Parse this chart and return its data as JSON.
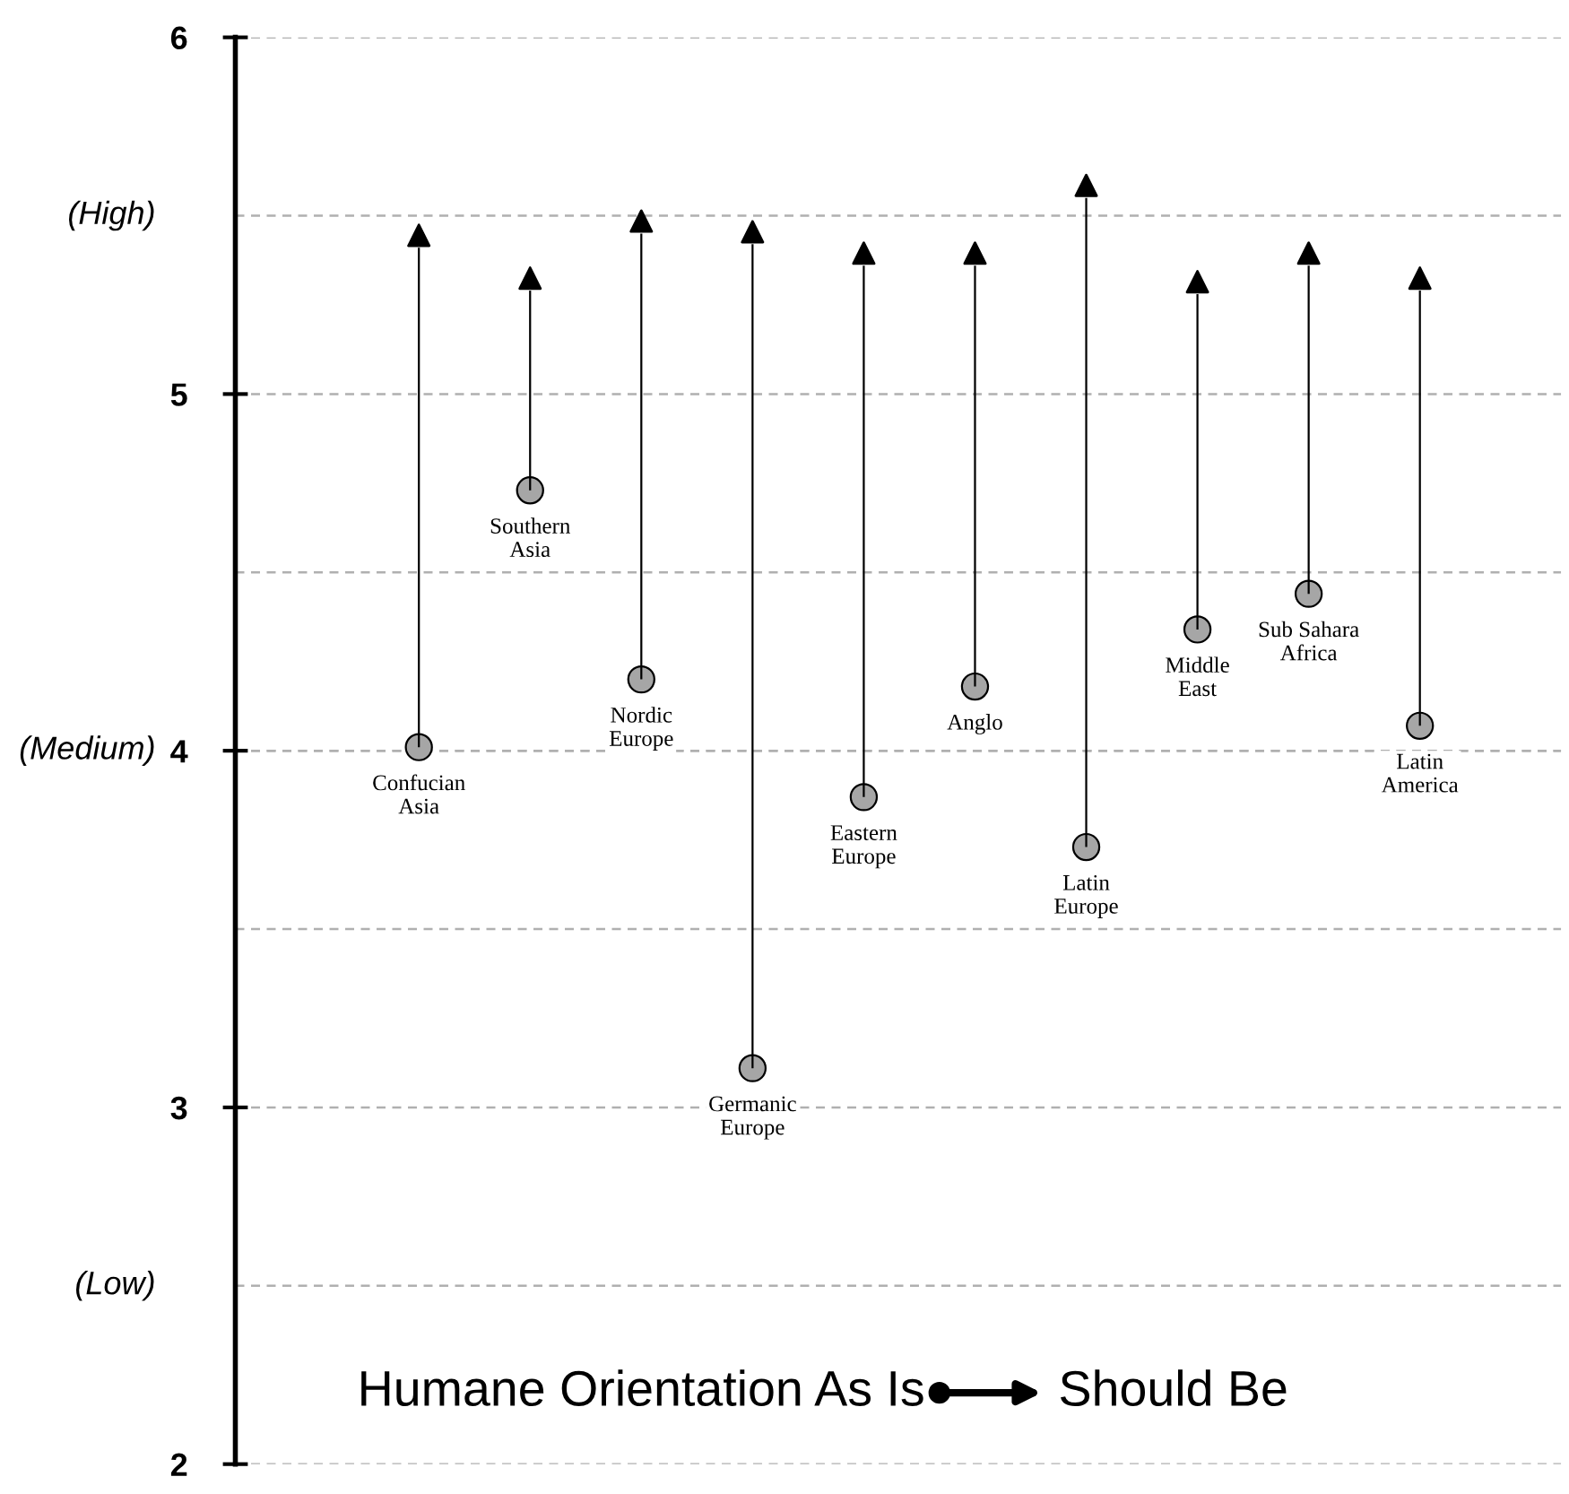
{
  "chart_data": {
    "type": "bar",
    "title": "Humane Orientation As Is",
    "annotations": [
      "Should Be"
    ],
    "categories": [
      "Confucian\nAsia",
      "Southern\nAsia",
      "Nordic\nEurope",
      "Germanic\nEurope",
      "Eastern\nEurope",
      "Anglo",
      "Latin\nEurope",
      "Middle\nEast",
      "Sub Sahara\nAfrica",
      "Latin\nAmerica"
    ],
    "base": [
      4.01,
      4.73,
      4.2,
      3.11,
      3.87,
      4.18,
      3.73,
      4.34,
      4.44,
      4.07
    ],
    "values": [
      1.4,
      0.56,
      1.25,
      2.31,
      1.49,
      1.18,
      1.82,
      0.94,
      0.92,
      1.22
    ],
    "color": "#000000",
    "ylim": [
      2,
      6
    ],
    "yticks": [
      2,
      3,
      4,
      5,
      6
    ],
    "ref_lines": [
      {
        "axis": "y",
        "value": 2.5,
        "label": "(Low)",
        "color": "#b0b0b0",
        "line_style": "dashed"
      },
      {
        "axis": "y",
        "value": 3.5,
        "label": null,
        "color": "#b0b0b0",
        "line_style": "dashed"
      },
      {
        "axis": "y",
        "value": 4,
        "label": "(Medium)",
        "color": "#b0b0b0",
        "line_style": "dashed"
      },
      {
        "axis": "y",
        "value": 4.5,
        "label": null,
        "color": "#b0b0b0",
        "line_style": "dashed"
      },
      {
        "axis": "y",
        "value": 5.5,
        "label": "(High)",
        "color": "#b0b0b0",
        "line_style": "dashed"
      }
    ],
    "grid": "y",
    "tick_labels": "y"
  }
}
